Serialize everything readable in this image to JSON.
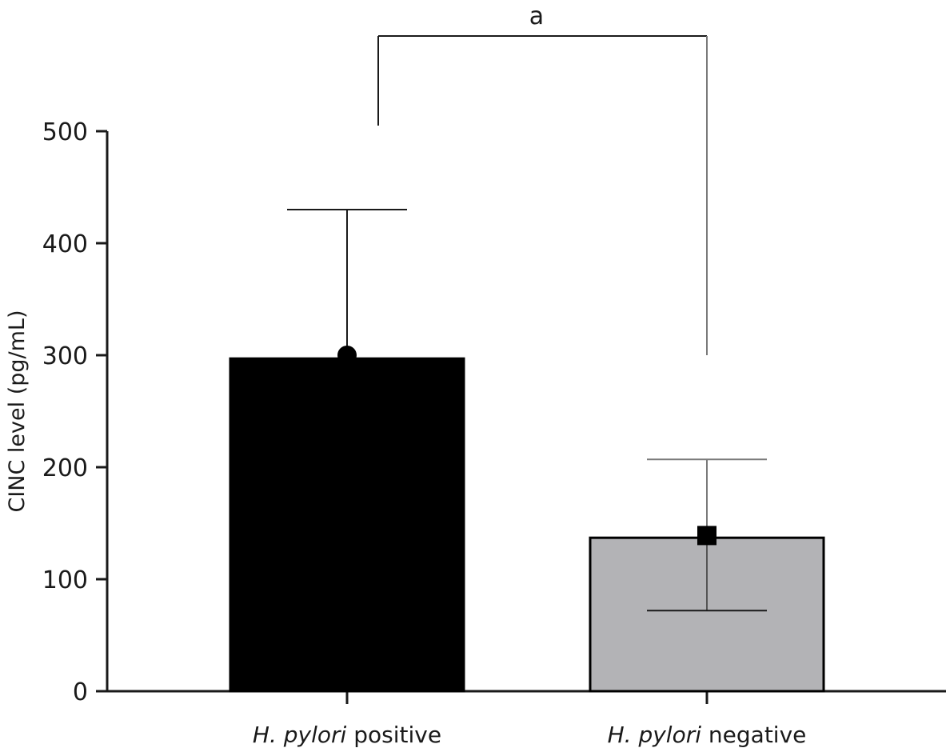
{
  "chart_data": {
    "type": "bar",
    "ylabel": "CINC level (pg/mL)",
    "ylim": [
      0,
      500
    ],
    "yticks": [
      0,
      100,
      200,
      300,
      400,
      500
    ],
    "categories": [
      {
        "italic": "H. pylori",
        "rest": " positive"
      },
      {
        "italic": "H. pylori",
        "rest": " negative"
      }
    ],
    "values": [
      297,
      137
    ],
    "error_upper": [
      430,
      207
    ],
    "error_lower": [
      null,
      72
    ],
    "point_means": [
      300,
      139
    ],
    "point_markers": [
      "circle",
      "square"
    ],
    "bar_colors": [
      "#000000",
      "#b3b3b6"
    ],
    "bracket_top": 585,
    "bracket_left_bottom": 505,
    "bracket_right_bottom": 300,
    "significance_label": "a"
  }
}
